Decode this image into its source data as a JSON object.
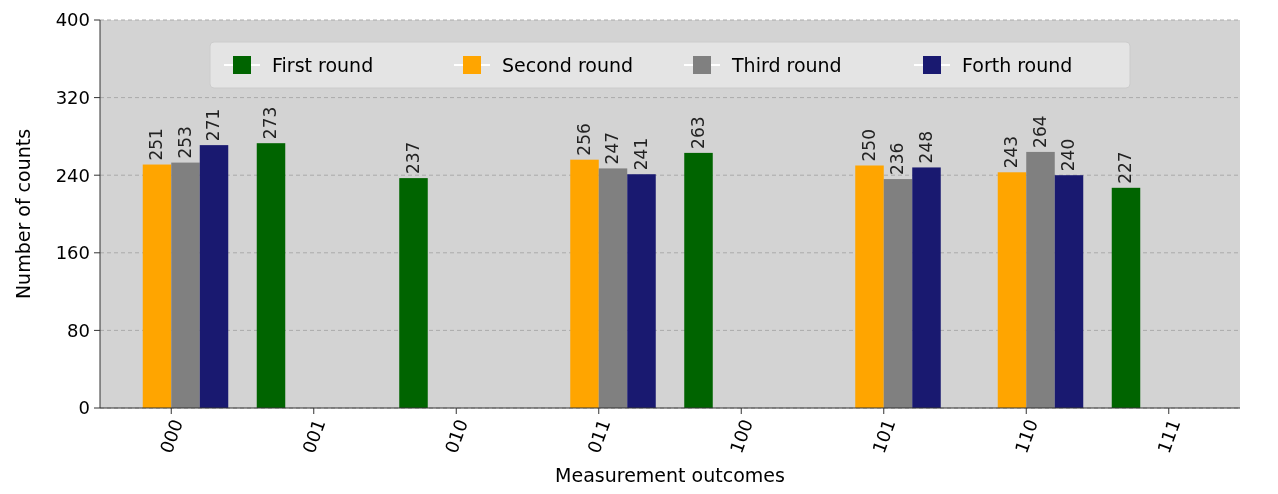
{
  "chart_data": {
    "type": "bar",
    "xlabel": "Measurement outcomes",
    "ylabel": "Number of counts",
    "categories": [
      "000",
      "001",
      "010",
      "011",
      "100",
      "101",
      "110",
      "111"
    ],
    "series": [
      {
        "name": "First round",
        "color": "#006400",
        "values": [
          null,
          273,
          237,
          null,
          263,
          null,
          null,
          227
        ]
      },
      {
        "name": "Second round",
        "color": "#ffa500",
        "values": [
          251,
          null,
          null,
          256,
          null,
          250,
          243,
          null
        ]
      },
      {
        "name": "Third round",
        "color": "#808080",
        "values": [
          253,
          null,
          null,
          247,
          null,
          236,
          264,
          null
        ]
      },
      {
        "name": "Forth round",
        "color": "#191970",
        "values": [
          271,
          null,
          null,
          241,
          null,
          248,
          240,
          null
        ]
      }
    ],
    "ylim": [
      0,
      400
    ],
    "yticks": [
      0,
      80,
      160,
      240,
      320,
      400
    ],
    "grid": "y",
    "legend": "top",
    "data_labels": true
  }
}
